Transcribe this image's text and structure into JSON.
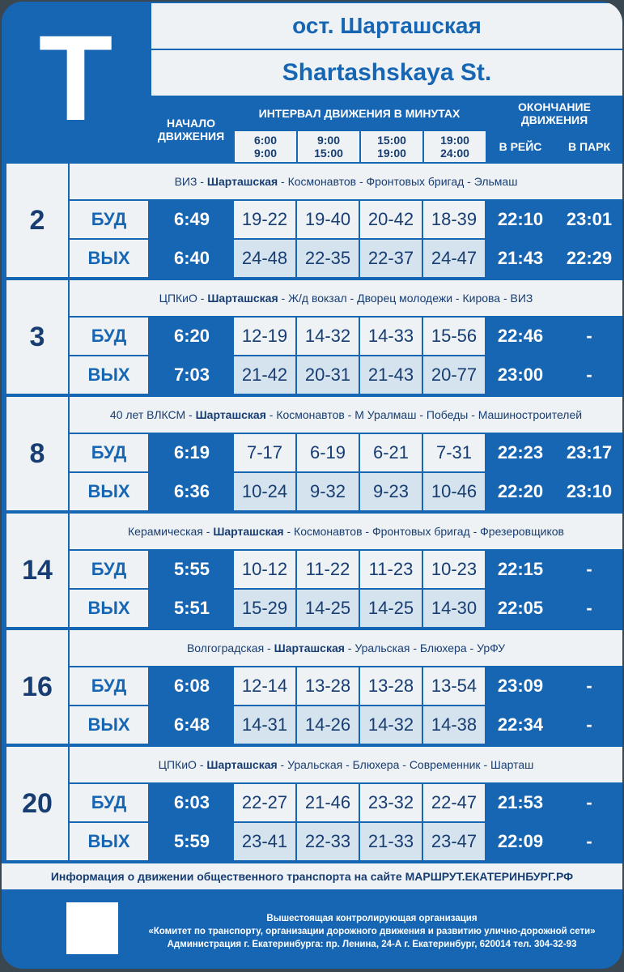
{
  "header": {
    "logo": "Т",
    "title_ru": "ост. Шарташская",
    "title_en": "Shartashskaya St."
  },
  "columns": {
    "start": "НАЧАЛО ДВИЖЕНИЯ",
    "interval": "ИНТЕРВАЛ ДВИЖЕНИЯ В МИНУТАХ",
    "periods": [
      {
        "from": "6:00",
        "to": "9:00"
      },
      {
        "from": "9:00",
        "to": "15:00"
      },
      {
        "from": "15:00",
        "to": "19:00"
      },
      {
        "from": "19:00",
        "to": "24:00"
      }
    ],
    "end": "ОКОНЧАНИЕ ДВИЖЕНИЯ",
    "end_trip": "В РЕЙС",
    "end_park": "В ПАРК"
  },
  "routes": [
    {
      "number": 2,
      "before": "ВИЗ - ",
      "bold": "Шарташская",
      "after": " - Космонавтов - Фронтовых бригад - Эльмаш",
      "rows": [
        {
          "day": "БУД",
          "cells": [
            "6:49",
            "19-22",
            "19-40",
            "20-42",
            "18-39",
            "22:10",
            "23:01"
          ]
        },
        {
          "day": "ВЫХ",
          "cells": [
            "6:40",
            "24-48",
            "22-35",
            "22-37",
            "24-47",
            "21:43",
            "22:29"
          ]
        }
      ]
    },
    {
      "number": 3,
      "before": "ЦПКиО - ",
      "bold": "Шарташская",
      "after": " - Ж/д вокзал - Дворец молодежи - Кирова - ВИЗ",
      "rows": [
        {
          "day": "БУД",
          "cells": [
            "6:20",
            "12-19",
            "14-32",
            "14-33",
            "15-56",
            "22:46",
            "-"
          ]
        },
        {
          "day": "ВЫХ",
          "cells": [
            "7:03",
            "21-42",
            "20-31",
            "21-43",
            "20-77",
            "23:00",
            "-"
          ]
        }
      ]
    },
    {
      "number": 8,
      "before": "40 лет ВЛКСМ - ",
      "bold": "Шарташская",
      "after": " - Космонавтов - М Уралмаш - Победы - Машиностроителей",
      "rows": [
        {
          "day": "БУД",
          "cells": [
            "6:19",
            "7-17",
            "6-19",
            "6-21",
            "7-31",
            "22:23",
            "23:17"
          ]
        },
        {
          "day": "ВЫХ",
          "cells": [
            "6:36",
            "10-24",
            "9-32",
            "9-23",
            "10-46",
            "22:20",
            "23:10"
          ]
        }
      ]
    },
    {
      "number": 14,
      "before": "Керамическая - ",
      "bold": "Шарташская",
      "after": " - Космонавтов - Фронтовых бригад - Фрезеровщиков",
      "rows": [
        {
          "day": "БУД",
          "cells": [
            "5:55",
            "10-12",
            "11-22",
            "11-23",
            "10-23",
            "22:15",
            "-"
          ]
        },
        {
          "day": "ВЫХ",
          "cells": [
            "5:51",
            "15-29",
            "14-25",
            "14-25",
            "14-30",
            "22:05",
            "-"
          ]
        }
      ]
    },
    {
      "number": 16,
      "before": "Волгоградская - ",
      "bold": "Шарташская",
      "after": " - Уральская - Блюхера - УрФУ",
      "rows": [
        {
          "day": "БУД",
          "cells": [
            "6:08",
            "12-14",
            "13-28",
            "13-28",
            "13-54",
            "23:09",
            "-"
          ]
        },
        {
          "day": "ВЫХ",
          "cells": [
            "6:48",
            "14-31",
            "14-26",
            "14-32",
            "14-38",
            "22:34",
            "-"
          ]
        }
      ]
    },
    {
      "number": 20,
      "before": "ЦПКиО - ",
      "bold": "Шарташская",
      "after": " - Уральская - Блюхера - Современник - Шарташ",
      "rows": [
        {
          "day": "БУД",
          "cells": [
            "6:03",
            "22-27",
            "21-46",
            "23-32",
            "22-47",
            "21:53",
            "-"
          ]
        },
        {
          "day": "ВЫХ",
          "cells": [
            "5:59",
            "23-41",
            "22-33",
            "21-33",
            "23-47",
            "22:09",
            "-"
          ]
        }
      ]
    }
  ],
  "footer": {
    "info": "Информация о движении общественного транспорта на сайте МАРШРУТ.ЕКАТЕРИНБУРГ.РФ",
    "org_lines": [
      "Вышестоящая контролирующая организация",
      "«Комитет по транспорту, организации дорожного движения и развитию улично-дорожной сети»",
      "Администрация г. Екатеринбурга: пр. Ленина, 24-А г. Екатеринбург, 620014 тел. 304-32-93"
    ]
  }
}
